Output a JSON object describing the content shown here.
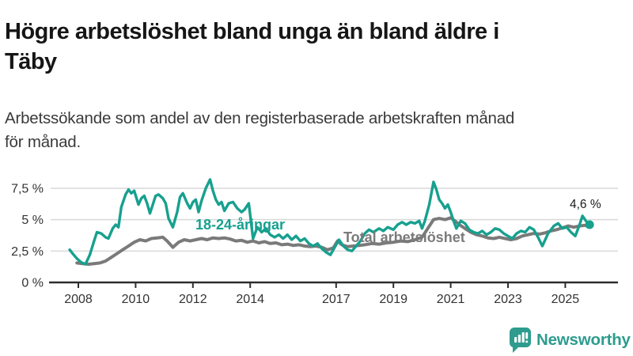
{
  "header": {
    "title_line1": "Högre arbetslöshet bland unga än bland äldre i",
    "title_line2": "Täby",
    "title_full": "Högre arbetslöshet bland unga än bland äldre i Täby",
    "subtitle_line1": "Arbetssökande som andel av den registerbaserade arbetskraften månad",
    "subtitle_line2": "för månad."
  },
  "branding": {
    "logo_text": "Newsworthy",
    "logo_color": "#2d9c8e"
  },
  "chart_data": {
    "type": "line",
    "title": "Högre arbetslöshet bland unga än bland äldre i Täby",
    "subtitle": "Arbetssökande som andel av den registerbaserade arbetskraften månad för månad.",
    "xlabel": "",
    "ylabel": "",
    "xlim": [
      2007.6,
      2026.2
    ],
    "ylim": [
      0,
      8.6
    ],
    "grid": "horizontal",
    "legend_position": "inline-labels",
    "colors": {
      "grid": "#d9d9d9",
      "axis": "#2e2e2e",
      "tick_text": "#333333"
    },
    "y_ticks": [
      {
        "value": 0,
        "label": "0 %"
      },
      {
        "value": 2.5,
        "label": "2,5 %"
      },
      {
        "value": 5,
        "label": "5 %"
      },
      {
        "value": 7.5,
        "label": "7,5 %"
      }
    ],
    "x_ticks": [
      {
        "year": 2008,
        "label": "2008"
      },
      {
        "year": 2010,
        "label": "2010"
      },
      {
        "year": 2012,
        "label": "2012"
      },
      {
        "year": 2014,
        "label": "2014"
      },
      {
        "year": 2017,
        "label": "2017"
      },
      {
        "year": 2019,
        "label": "2019"
      },
      {
        "year": 2021,
        "label": "2021"
      },
      {
        "year": 2023,
        "label": "2023"
      },
      {
        "year": 2025,
        "label": "2025"
      }
    ],
    "series": [
      {
        "name": "Total arbetslöshet",
        "color": "#7a7a7a",
        "stroke_width": 4,
        "points": [
          [
            2007.95,
            1.55
          ],
          [
            2008.15,
            1.5
          ],
          [
            2008.35,
            1.45
          ],
          [
            2008.55,
            1.5
          ],
          [
            2008.75,
            1.55
          ],
          [
            2008.95,
            1.7
          ],
          [
            2009.15,
            2.0
          ],
          [
            2009.35,
            2.3
          ],
          [
            2009.55,
            2.6
          ],
          [
            2009.75,
            2.9
          ],
          [
            2009.95,
            3.2
          ],
          [
            2010.15,
            3.4
          ],
          [
            2010.35,
            3.3
          ],
          [
            2010.55,
            3.5
          ],
          [
            2010.75,
            3.55
          ],
          [
            2010.95,
            3.6
          ],
          [
            2011.1,
            3.3
          ],
          [
            2011.3,
            2.8
          ],
          [
            2011.5,
            3.2
          ],
          [
            2011.7,
            3.4
          ],
          [
            2011.9,
            3.3
          ],
          [
            2012.1,
            3.4
          ],
          [
            2012.3,
            3.5
          ],
          [
            2012.5,
            3.4
          ],
          [
            2012.7,
            3.55
          ],
          [
            2012.9,
            3.5
          ],
          [
            2013.1,
            3.55
          ],
          [
            2013.3,
            3.45
          ],
          [
            2013.5,
            3.3
          ],
          [
            2013.7,
            3.35
          ],
          [
            2013.9,
            3.2
          ],
          [
            2014.1,
            3.3
          ],
          [
            2014.3,
            3.15
          ],
          [
            2014.5,
            3.25
          ],
          [
            2014.7,
            3.1
          ],
          [
            2014.9,
            3.15
          ],
          [
            2015.1,
            3.0
          ],
          [
            2015.3,
            3.05
          ],
          [
            2015.5,
            2.95
          ],
          [
            2015.7,
            3.0
          ],
          [
            2015.9,
            2.9
          ],
          [
            2016.1,
            2.85
          ],
          [
            2016.3,
            2.9
          ],
          [
            2016.5,
            2.8
          ],
          [
            2016.7,
            2.6
          ],
          [
            2016.9,
            2.75
          ],
          [
            2017.05,
            3.3
          ],
          [
            2017.2,
            3.0
          ],
          [
            2017.4,
            2.85
          ],
          [
            2017.6,
            2.9
          ],
          [
            2017.8,
            2.95
          ],
          [
            2018.0,
            3.0
          ],
          [
            2018.25,
            3.1
          ],
          [
            2018.5,
            3.05
          ],
          [
            2018.75,
            3.15
          ],
          [
            2019.0,
            3.2
          ],
          [
            2019.25,
            3.3
          ],
          [
            2019.5,
            3.25
          ],
          [
            2019.75,
            3.4
          ],
          [
            2020.0,
            3.6
          ],
          [
            2020.2,
            4.3
          ],
          [
            2020.4,
            5.0
          ],
          [
            2020.6,
            5.1
          ],
          [
            2020.8,
            5.0
          ],
          [
            2021.0,
            5.15
          ],
          [
            2021.15,
            4.9
          ],
          [
            2021.3,
            4.6
          ],
          [
            2021.5,
            4.3
          ],
          [
            2021.7,
            4.0
          ],
          [
            2021.9,
            3.8
          ],
          [
            2022.1,
            3.7
          ],
          [
            2022.3,
            3.55
          ],
          [
            2022.5,
            3.5
          ],
          [
            2022.7,
            3.6
          ],
          [
            2022.9,
            3.5
          ],
          [
            2023.1,
            3.4
          ],
          [
            2023.3,
            3.5
          ],
          [
            2023.5,
            3.7
          ],
          [
            2023.7,
            3.8
          ],
          [
            2023.9,
            3.9
          ],
          [
            2024.1,
            3.85
          ],
          [
            2024.3,
            3.95
          ],
          [
            2024.5,
            4.1
          ],
          [
            2024.7,
            4.2
          ],
          [
            2024.9,
            4.35
          ],
          [
            2025.1,
            4.5
          ],
          [
            2025.3,
            4.4
          ],
          [
            2025.5,
            4.5
          ],
          [
            2025.7,
            4.55
          ],
          [
            2025.8,
            4.45
          ]
        ]
      },
      {
        "name": "18-24-åringar",
        "color": "#17a08f",
        "stroke_width": 3.4,
        "points": [
          [
            2007.7,
            2.6
          ],
          [
            2007.8,
            2.3
          ],
          [
            2007.95,
            1.9
          ],
          [
            2008.1,
            1.6
          ],
          [
            2008.25,
            1.45
          ],
          [
            2008.4,
            2.2
          ],
          [
            2008.55,
            3.3
          ],
          [
            2008.65,
            4.0
          ],
          [
            2008.8,
            3.9
          ],
          [
            2008.95,
            3.6
          ],
          [
            2009.05,
            3.5
          ],
          [
            2009.2,
            4.3
          ],
          [
            2009.3,
            4.6
          ],
          [
            2009.4,
            4.4
          ],
          [
            2009.5,
            6.0
          ],
          [
            2009.65,
            7.0
          ],
          [
            2009.75,
            7.4
          ],
          [
            2009.85,
            7.1
          ],
          [
            2009.95,
            7.3
          ],
          [
            2010.1,
            6.2
          ],
          [
            2010.2,
            6.7
          ],
          [
            2010.3,
            6.9
          ],
          [
            2010.4,
            6.3
          ],
          [
            2010.5,
            5.5
          ],
          [
            2010.6,
            6.2
          ],
          [
            2010.7,
            6.9
          ],
          [
            2010.8,
            7.0
          ],
          [
            2010.95,
            6.7
          ],
          [
            2011.05,
            6.3
          ],
          [
            2011.15,
            5.1
          ],
          [
            2011.3,
            4.4
          ],
          [
            2011.45,
            5.6
          ],
          [
            2011.55,
            6.8
          ],
          [
            2011.65,
            7.1
          ],
          [
            2011.8,
            6.3
          ],
          [
            2011.9,
            5.9
          ],
          [
            2012.0,
            6.4
          ],
          [
            2012.1,
            6.6
          ],
          [
            2012.2,
            5.6
          ],
          [
            2012.3,
            6.5
          ],
          [
            2012.45,
            7.5
          ],
          [
            2012.6,
            8.2
          ],
          [
            2012.7,
            7.3
          ],
          [
            2012.8,
            6.6
          ],
          [
            2012.9,
            6.2
          ],
          [
            2013.0,
            6.4
          ],
          [
            2013.1,
            5.7
          ],
          [
            2013.25,
            6.3
          ],
          [
            2013.4,
            6.4
          ],
          [
            2013.55,
            5.9
          ],
          [
            2013.7,
            5.6
          ],
          [
            2013.8,
            5.8
          ],
          [
            2013.95,
            6.3
          ],
          [
            2014.1,
            3.5
          ],
          [
            2014.25,
            4.4
          ],
          [
            2014.4,
            4.0
          ],
          [
            2014.55,
            4.3
          ],
          [
            2014.7,
            3.8
          ],
          [
            2014.85,
            3.6
          ],
          [
            2015.0,
            3.8
          ],
          [
            2015.15,
            3.5
          ],
          [
            2015.3,
            3.8
          ],
          [
            2015.45,
            3.4
          ],
          [
            2015.6,
            3.7
          ],
          [
            2015.75,
            3.3
          ],
          [
            2015.9,
            3.5
          ],
          [
            2016.05,
            3.1
          ],
          [
            2016.2,
            2.9
          ],
          [
            2016.35,
            3.1
          ],
          [
            2016.5,
            2.7
          ],
          [
            2016.65,
            2.4
          ],
          [
            2016.8,
            2.2
          ],
          [
            2016.95,
            2.8
          ],
          [
            2017.1,
            3.4
          ],
          [
            2017.25,
            2.9
          ],
          [
            2017.4,
            2.6
          ],
          [
            2017.55,
            2.5
          ],
          [
            2017.7,
            2.9
          ],
          [
            2017.85,
            3.3
          ],
          [
            2018.0,
            3.9
          ],
          [
            2018.15,
            4.2
          ],
          [
            2018.3,
            4.0
          ],
          [
            2018.5,
            4.3
          ],
          [
            2018.65,
            4.1
          ],
          [
            2018.8,
            4.4
          ],
          [
            2019.0,
            4.2
          ],
          [
            2019.15,
            4.6
          ],
          [
            2019.3,
            4.8
          ],
          [
            2019.45,
            4.6
          ],
          [
            2019.6,
            4.8
          ],
          [
            2019.75,
            4.7
          ],
          [
            2019.9,
            4.9
          ],
          [
            2020.0,
            4.3
          ],
          [
            2020.1,
            4.9
          ],
          [
            2020.25,
            6.2
          ],
          [
            2020.4,
            8.0
          ],
          [
            2020.5,
            7.4
          ],
          [
            2020.6,
            6.6
          ],
          [
            2020.7,
            6.3
          ],
          [
            2020.8,
            5.9
          ],
          [
            2020.9,
            6.2
          ],
          [
            2021.0,
            5.6
          ],
          [
            2021.1,
            4.9
          ],
          [
            2021.2,
            4.3
          ],
          [
            2021.35,
            4.9
          ],
          [
            2021.5,
            4.7
          ],
          [
            2021.65,
            4.2
          ],
          [
            2021.8,
            4.0
          ],
          [
            2021.95,
            3.9
          ],
          [
            2022.1,
            4.1
          ],
          [
            2022.25,
            3.8
          ],
          [
            2022.4,
            4.0
          ],
          [
            2022.55,
            4.3
          ],
          [
            2022.7,
            4.2
          ],
          [
            2022.85,
            3.9
          ],
          [
            2023.0,
            3.7
          ],
          [
            2023.15,
            3.5
          ],
          [
            2023.3,
            3.9
          ],
          [
            2023.45,
            4.1
          ],
          [
            2023.6,
            4.0
          ],
          [
            2023.75,
            4.4
          ],
          [
            2023.9,
            4.2
          ],
          [
            2024.05,
            3.6
          ],
          [
            2024.2,
            2.9
          ],
          [
            2024.4,
            3.9
          ],
          [
            2024.6,
            4.5
          ],
          [
            2024.75,
            4.7
          ],
          [
            2024.9,
            4.3
          ],
          [
            2025.05,
            4.4
          ],
          [
            2025.2,
            4.0
          ],
          [
            2025.35,
            3.7
          ],
          [
            2025.5,
            4.6
          ],
          [
            2025.6,
            5.3
          ],
          [
            2025.75,
            4.8
          ],
          [
            2025.85,
            4.6
          ]
        ]
      }
    ],
    "annotation": {
      "label": "4,6 %",
      "year": 2025.85,
      "value": 4.6,
      "series": "18-24-åringar"
    }
  }
}
